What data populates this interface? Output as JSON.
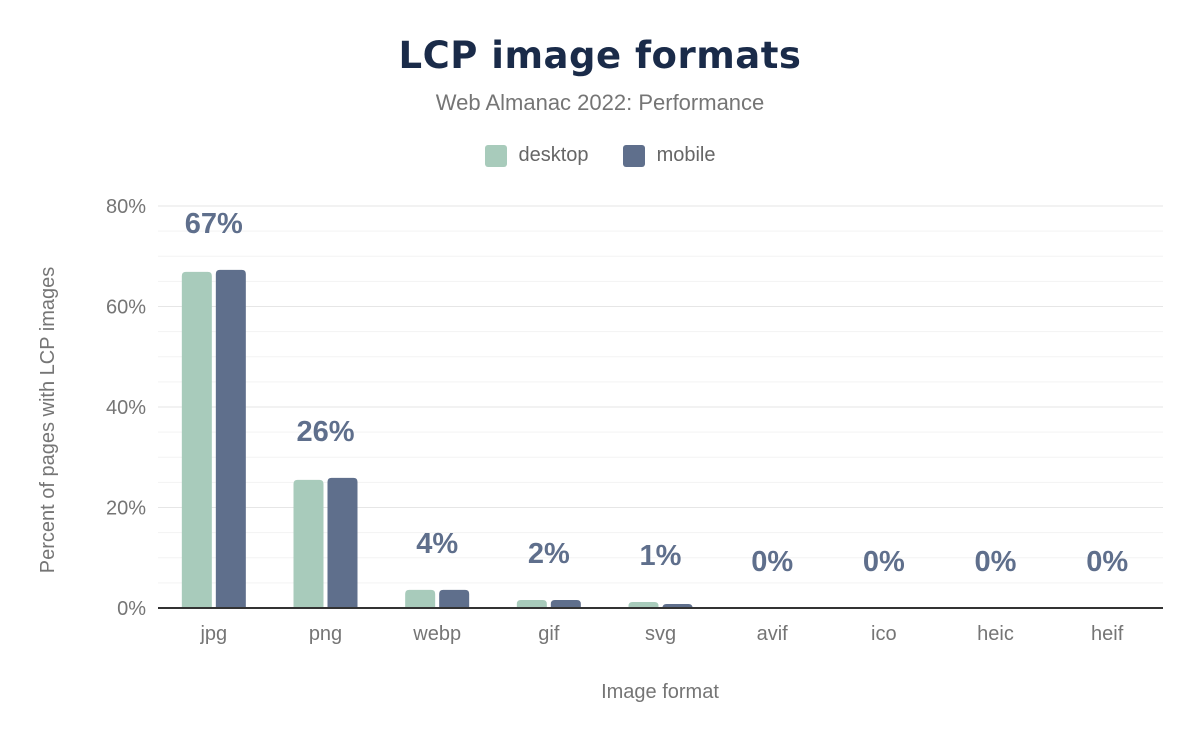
{
  "chart_data": {
    "type": "bar",
    "title": "LCP image formats",
    "subtitle": "Web Almanac 2022: Performance",
    "xlabel": "Image format",
    "ylabel": "Percent of pages with LCP images",
    "categories": [
      "jpg",
      "png",
      "webp",
      "gif",
      "svg",
      "avif",
      "ico",
      "heic",
      "heif"
    ],
    "series": [
      {
        "name": "desktop",
        "color": "#a8cbbb",
        "values": [
          66.9,
          25.5,
          3.6,
          1.6,
          1.2,
          0,
          0,
          0,
          0
        ]
      },
      {
        "name": "mobile",
        "color": "#5f6f8c",
        "values": [
          67.3,
          25.9,
          3.6,
          1.6,
          0.8,
          0,
          0,
          0,
          0
        ]
      }
    ],
    "data_labels": [
      "67%",
      "26%",
      "4%",
      "2%",
      "1%",
      "0%",
      "0%",
      "0%",
      "0%"
    ],
    "ylim": [
      0,
      80
    ],
    "yticks": [
      0,
      20,
      40,
      60,
      80
    ],
    "ytick_labels": [
      "0%",
      "20%",
      "40%",
      "60%",
      "80%"
    ],
    "grid": true,
    "legend_position": "top"
  }
}
